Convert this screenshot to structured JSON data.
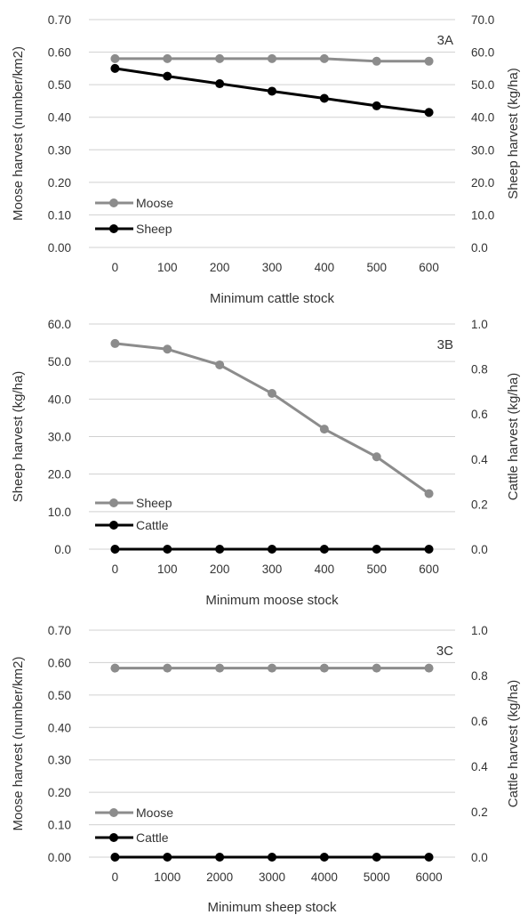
{
  "chart_data": [
    {
      "type": "line",
      "panel_label": "3A",
      "categories": [
        "0",
        "100",
        "200",
        "300",
        "400",
        "500",
        "600"
      ],
      "xlabel": "Minimum cattle stock",
      "ylabel_left": "Moose harvest (number/km2)",
      "ylabel_right": "Sheep harvest (kg/ha)",
      "y_left": {
        "min": 0,
        "max": 0.7,
        "ticks": [
          "0.00",
          "0.10",
          "0.20",
          "0.30",
          "0.40",
          "0.50",
          "0.60",
          "0.70"
        ]
      },
      "y_right": {
        "min": 0,
        "max": 70,
        "ticks": [
          "0.0",
          "10.0",
          "20.0",
          "30.0",
          "40.0",
          "50.0",
          "60.0",
          "70.0"
        ]
      },
      "grid": true,
      "legend_position": "bottom-left",
      "series": [
        {
          "name": "Moose",
          "axis": "left",
          "color": "#8c8c8c",
          "values": [
            0.58,
            0.58,
            0.58,
            0.58,
            0.58,
            0.572,
            0.572
          ]
        },
        {
          "name": "Sheep",
          "axis": "right",
          "color": "#000000",
          "values": [
            55.0,
            52.6,
            50.3,
            48.0,
            45.8,
            43.5,
            41.5
          ]
        }
      ]
    },
    {
      "type": "line",
      "panel_label": "3B",
      "categories": [
        "0",
        "100",
        "200",
        "300",
        "400",
        "500",
        "600"
      ],
      "xlabel": "Minimum moose stock",
      "ylabel_left": "Sheep harvest (kg/ha)",
      "ylabel_right": "Cattle harvest (kg/ha)",
      "y_left": {
        "min": 0,
        "max": 60,
        "ticks": [
          "0.0",
          "10.0",
          "20.0",
          "30.0",
          "40.0",
          "50.0",
          "60.0"
        ]
      },
      "y_right": {
        "min": 0,
        "max": 1.0,
        "ticks": [
          "0.0",
          "0.2",
          "0.4",
          "0.6",
          "0.8",
          "1.0"
        ]
      },
      "grid": true,
      "legend_position": "bottom-left",
      "series": [
        {
          "name": "Sheep",
          "axis": "left",
          "color": "#8c8c8c",
          "values": [
            54.8,
            53.3,
            49.1,
            41.5,
            32.0,
            24.6,
            14.8
          ]
        },
        {
          "name": "Cattle",
          "axis": "right",
          "color": "#000000",
          "values": [
            0,
            0,
            0,
            0,
            0,
            0,
            0
          ]
        }
      ]
    },
    {
      "type": "line",
      "panel_label": "3C",
      "categories": [
        "0",
        "1000",
        "2000",
        "3000",
        "4000",
        "5000",
        "6000"
      ],
      "xlabel": "Minimum sheep stock",
      "ylabel_left": "Moose harvest (number/km2)",
      "ylabel_right": "Cattle harvest (kg/ha)",
      "y_left": {
        "min": 0,
        "max": 0.7,
        "ticks": [
          "0.00",
          "0.10",
          "0.20",
          "0.30",
          "0.40",
          "0.50",
          "0.60",
          "0.70"
        ]
      },
      "y_right": {
        "min": 0,
        "max": 1.0,
        "ticks": [
          "0.0",
          "0.2",
          "0.4",
          "0.6",
          "0.8",
          "1.0"
        ]
      },
      "grid": true,
      "legend_position": "bottom-left",
      "series": [
        {
          "name": "Moose",
          "axis": "left",
          "color": "#8c8c8c",
          "values": [
            0.583,
            0.583,
            0.583,
            0.583,
            0.583,
            0.583,
            0.583
          ]
        },
        {
          "name": "Cattle",
          "axis": "right",
          "color": "#000000",
          "values": [
            0,
            0,
            0,
            0,
            0,
            0,
            0
          ]
        }
      ]
    }
  ]
}
